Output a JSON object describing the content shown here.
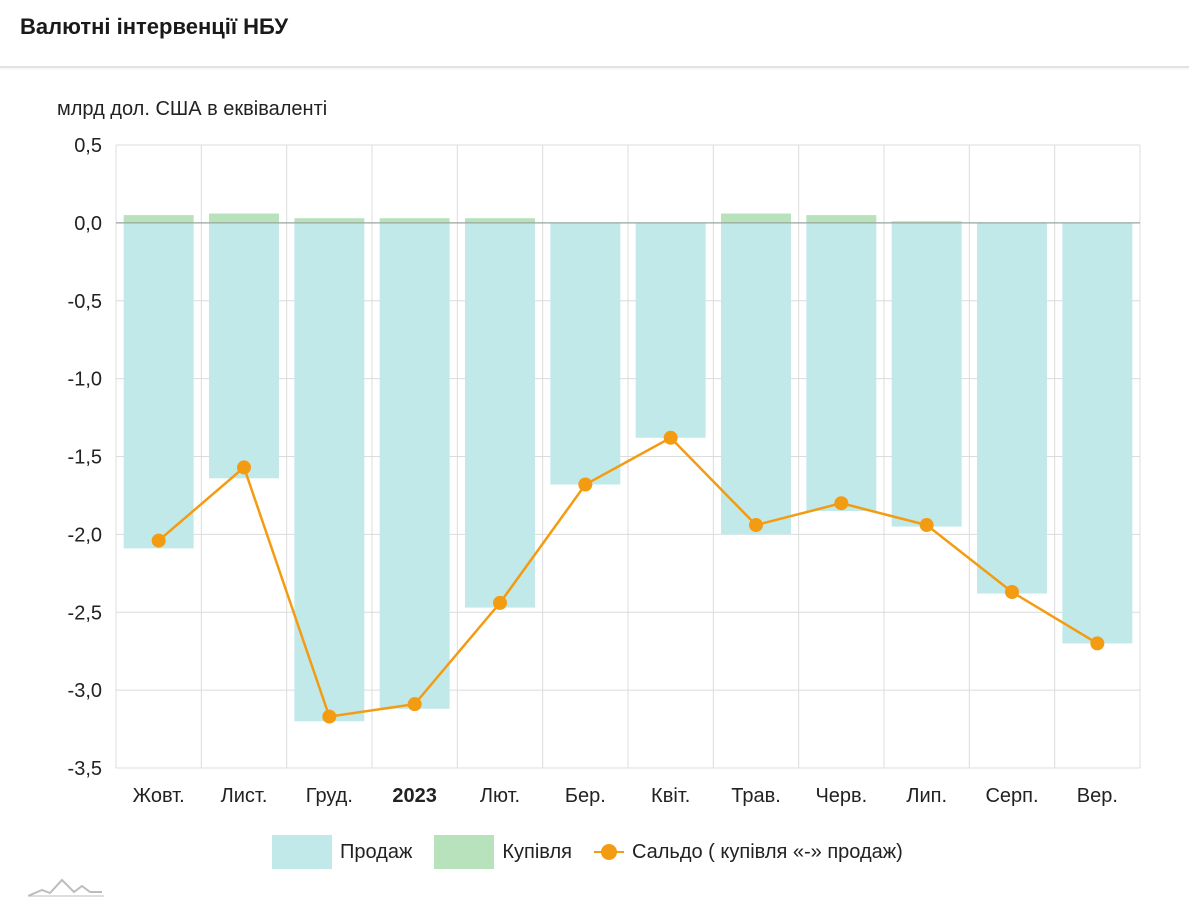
{
  "header": {
    "title": "Валютні інтервенції НБУ"
  },
  "chart_data": {
    "type": "bar",
    "title": "Валютні інтервенції НБУ",
    "ylabel": "млрд дол. США в еквіваленті",
    "xlabel": "",
    "ylim": [
      -3.5,
      0.5
    ],
    "ytick_labels": [
      "0,5",
      "0,0",
      "-0,5",
      "-1,0",
      "-1,5",
      "-2,0",
      "-2,5",
      "-3,0",
      "-3,5"
    ],
    "ytick_values": [
      0.5,
      0.0,
      -0.5,
      -1.0,
      -1.5,
      -2.0,
      -2.5,
      -3.0,
      -3.5
    ],
    "categories": [
      "Жовт.",
      "Лист.",
      "Груд.",
      "2023",
      "Лют.",
      "Бер.",
      "Квіт.",
      "Трав.",
      "Черв.",
      "Лип.",
      "Серп.",
      "Вер."
    ],
    "bold_categories": [
      "2023"
    ],
    "series": [
      {
        "name": "Продаж",
        "kind": "bar",
        "color": "#c2e9e9",
        "values": [
          -2.09,
          -1.64,
          -3.2,
          -3.12,
          -2.47,
          -1.68,
          -1.38,
          -2.0,
          -1.85,
          -1.95,
          -2.38,
          -2.7
        ]
      },
      {
        "name": "Купівля",
        "kind": "bar",
        "color": "#b8e2bc",
        "values": [
          0.05,
          0.06,
          0.03,
          0.03,
          0.03,
          0.0,
          0.0,
          0.06,
          0.05,
          0.01,
          0.0,
          0.0
        ]
      },
      {
        "name": "Сальдо ( купівля «-» продаж)",
        "kind": "line",
        "color": "#f39c12",
        "values": [
          -2.04,
          -1.57,
          -3.17,
          -3.09,
          -2.44,
          -1.68,
          -1.38,
          -1.94,
          -1.8,
          -1.94,
          -2.37,
          -2.7
        ]
      }
    ],
    "grid": true,
    "legend_position": "bottom"
  }
}
